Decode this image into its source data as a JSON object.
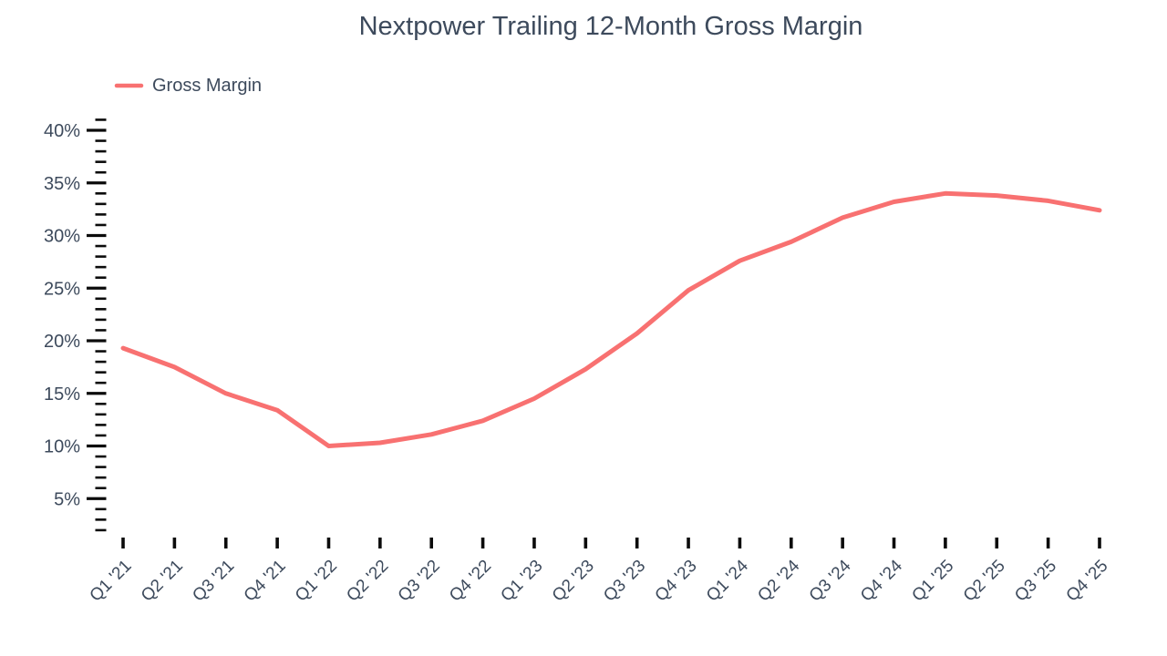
{
  "chart_data": {
    "type": "line",
    "title": "Nextpower Trailing 12-Month Gross Margin",
    "categories": [
      "Q1 '21",
      "Q2 '21",
      "Q3 '21",
      "Q4 '21",
      "Q1 '22",
      "Q2 '22",
      "Q3 '22",
      "Q4 '22",
      "Q1 '23",
      "Q2 '23",
      "Q3 '23",
      "Q4 '23",
      "Q1 '24",
      "Q2 '24",
      "Q3 '24",
      "Q4 '24",
      "Q1 '25",
      "Q2 '25",
      "Q3 '25",
      "Q4 '25"
    ],
    "series": [
      {
        "name": "Gross Margin",
        "values": [
          19.3,
          17.5,
          15.0,
          13.4,
          10.0,
          10.3,
          11.1,
          12.4,
          14.5,
          17.3,
          20.7,
          24.8,
          27.6,
          29.4,
          31.7,
          33.2,
          34.0,
          33.8,
          33.3,
          32.4
        ]
      }
    ],
    "xlabel": "",
    "ylabel": "",
    "y_axis": {
      "tick_labels": [
        "5%",
        "10%",
        "15%",
        "20%",
        "25%",
        "30%",
        "35%",
        "40%"
      ],
      "major_tick_values": [
        5,
        10,
        15,
        20,
        25,
        30,
        35,
        40
      ],
      "minor_tick_step": 1,
      "minor_tick_min": 2,
      "minor_tick_max": 41,
      "unit": "%"
    },
    "ylim": [
      2,
      41
    ],
    "x_tick_count": 20,
    "legend": {
      "position": "top-left",
      "entries": [
        "Gross Margin"
      ]
    },
    "grid": false
  },
  "colors": {
    "line": "#f87171",
    "text": "#3d4a5c",
    "tick": "#0b0b0b",
    "background": "#ffffff"
  }
}
